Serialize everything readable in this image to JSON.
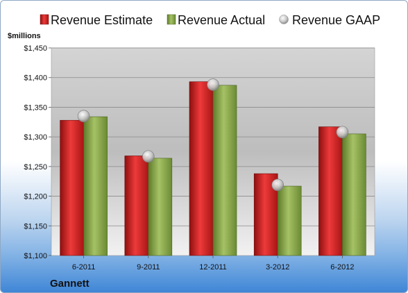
{
  "chart_data": {
    "type": "bar",
    "title": "",
    "company": "Gannett",
    "unit_label": "$millions",
    "xlabel": "",
    "ylabel": "",
    "categories": [
      "6-2011",
      "9-2011",
      "12-2011",
      "3-2012",
      "6-2012"
    ],
    "series": [
      {
        "name": "Revenue Estimate",
        "type": "bar",
        "color": "#d42020",
        "values": [
          1328,
          1268,
          1393,
          1238,
          1317
        ]
      },
      {
        "name": "Revenue Actual",
        "type": "bar",
        "color": "#8aa84a",
        "values": [
          1334,
          1264,
          1387,
          1217,
          1305
        ]
      },
      {
        "name": "Revenue GAAP",
        "type": "marker",
        "color": "#c8c8c8",
        "values": [
          1335,
          1267,
          1388,
          1219,
          1308
        ]
      }
    ],
    "ylim": [
      1100,
      1450
    ],
    "yticks": [
      1100,
      1150,
      1200,
      1250,
      1300,
      1350,
      1400,
      1450
    ],
    "ytick_labels": [
      "$1,100",
      "$1,150",
      "$1,200",
      "$1,250",
      "$1,300",
      "$1,350",
      "$1,400",
      "$1,450"
    ],
    "grid": true,
    "legend_position": "top"
  }
}
